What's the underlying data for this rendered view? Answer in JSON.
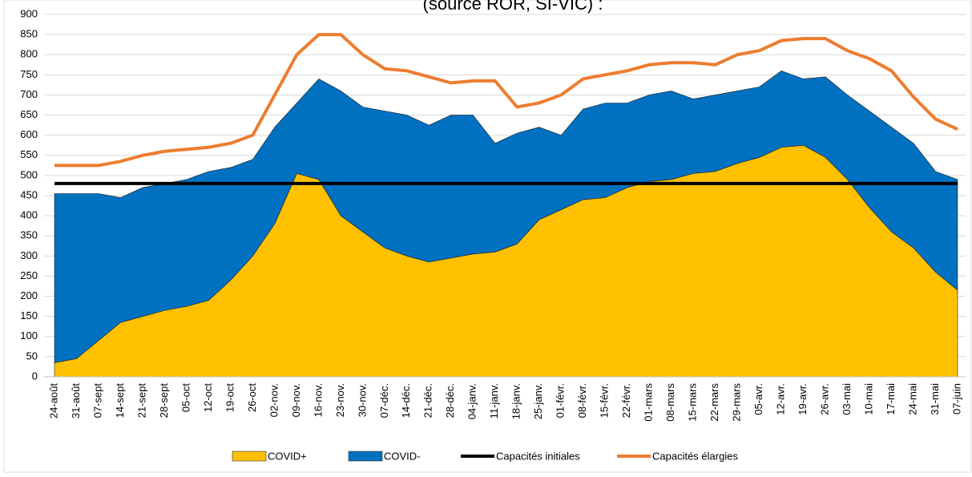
{
  "chart_data": {
    "type": "stacked-area",
    "title": "(source ROR, SI-VIC) :",
    "categories": [
      "24-août",
      "31-août",
      "07-sept",
      "14-sept",
      "21-sept",
      "28-sept",
      "05-oct",
      "12-oct",
      "19-oct",
      "26-oct",
      "02-nov.",
      "09-nov.",
      "16-nov.",
      "23-nov.",
      "30-nov.",
      "07-déc.",
      "14-déc.",
      "21-déc.",
      "28-déc.",
      "04-janv.",
      "11-janv.",
      "18-janv.",
      "25-janv.",
      "01-févr.",
      "08-févr.",
      "15-févr.",
      "22-févr.",
      "01-mars",
      "08-mars",
      "15-mars",
      "22-mars",
      "29-mars",
      "05-avr.",
      "12-avr.",
      "19-avr.",
      "26-avr.",
      "03-mai",
      "10-mai",
      "17-mai",
      "24-mai",
      "31-mai",
      "07-juin"
    ],
    "series": [
      {
        "name": "COVID+",
        "color": "#ffc000",
        "kind": "area",
        "values": [
          35,
          45,
          90,
          135,
          150,
          165,
          175,
          190,
          240,
          300,
          380,
          505,
          490,
          400,
          360,
          320,
          300,
          285,
          295,
          305,
          310,
          330,
          390,
          415,
          440,
          445,
          470,
          485,
          490,
          505,
          510,
          530,
          545,
          570,
          575,
          545,
          490,
          420,
          360,
          320,
          260,
          215
        ]
      },
      {
        "name": "COVID-",
        "color": "#0070c0",
        "kind": "area",
        "values": [
          420,
          410,
          365,
          310,
          320,
          315,
          315,
          320,
          280,
          240,
          240,
          175,
          250,
          310,
          310,
          340,
          350,
          340,
          355,
          345,
          270,
          275,
          230,
          185,
          225,
          235,
          210,
          215,
          220,
          185,
          190,
          180,
          175,
          190,
          165,
          200,
          210,
          240,
          260,
          260,
          250,
          275
        ]
      },
      {
        "name": "Capacités initiales",
        "color": "#000000",
        "kind": "line",
        "values": [
          480,
          480,
          480,
          480,
          480,
          480,
          480,
          480,
          480,
          480,
          480,
          480,
          480,
          480,
          480,
          480,
          480,
          480,
          480,
          480,
          480,
          480,
          480,
          480,
          480,
          480,
          480,
          480,
          480,
          480,
          480,
          480,
          480,
          480,
          480,
          480,
          480,
          480,
          480,
          480,
          480,
          480
        ]
      },
      {
        "name": "Capacités élargies",
        "color": "#ed7d31",
        "kind": "line",
        "values": [
          525,
          525,
          525,
          535,
          550,
          560,
          565,
          570,
          580,
          600,
          700,
          800,
          850,
          850,
          800,
          765,
          760,
          745,
          730,
          735,
          735,
          670,
          680,
          700,
          740,
          750,
          760,
          775,
          780,
          780,
          775,
          800,
          810,
          835,
          840,
          840,
          810,
          790,
          760,
          695,
          640,
          615
        ]
      }
    ],
    "ylim": [
      0,
      900
    ],
    "yticks": [
      0,
      50,
      100,
      150,
      200,
      250,
      300,
      350,
      400,
      450,
      500,
      550,
      600,
      650,
      700,
      750,
      800,
      850,
      900
    ],
    "grid": true
  }
}
